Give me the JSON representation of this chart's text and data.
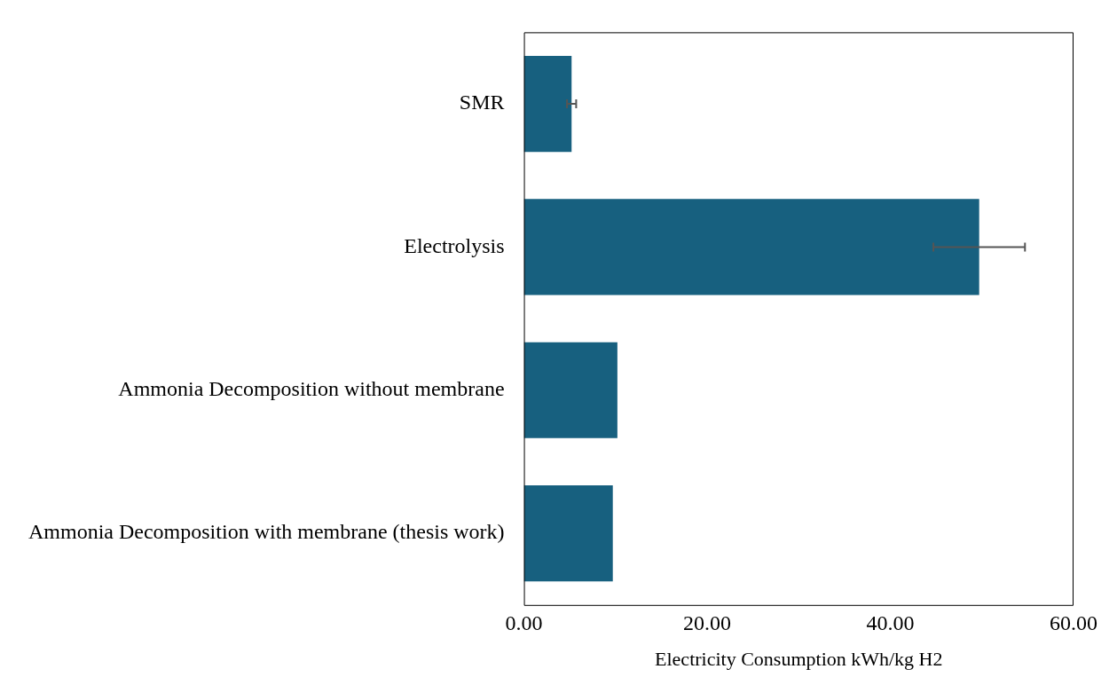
{
  "chart_data": {
    "type": "bar",
    "orientation": "horizontal",
    "categories": [
      "SMR",
      "Electrolysis",
      "Ammonia Decomposition without membrane",
      "Ammonia Decomposition with membrane (thesis work)"
    ],
    "values": [
      5.2,
      49.7,
      10.2,
      9.7
    ],
    "errors": [
      0.5,
      5,
      null,
      null
    ],
    "color": "#17607f",
    "xlabel": "Electricity Consumption kWh/kg H2",
    "xlim": [
      0,
      60
    ],
    "xticks": [
      {
        "value": 0,
        "label": "0.00"
      },
      {
        "value": 20,
        "label": "20.00"
      },
      {
        "value": 40,
        "label": "40.00"
      },
      {
        "value": 60,
        "label": "60.00"
      }
    ],
    "grid": false,
    "legend": false
  }
}
